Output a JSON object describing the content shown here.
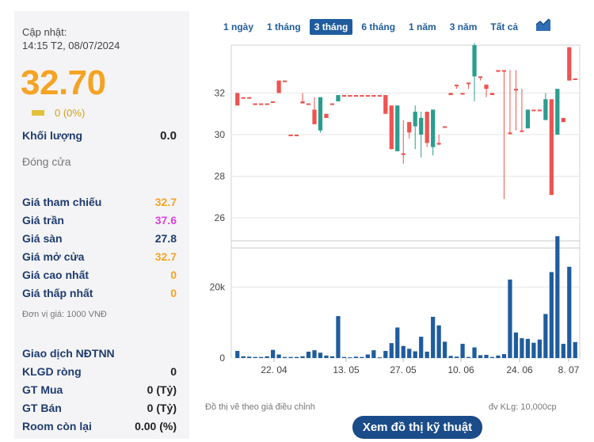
{
  "summary": {
    "updated_label": "Cập nhật:",
    "updated_time": "14:15 T2, 08/07/2024",
    "price": "32.70",
    "change": "0 (0%)",
    "volume_label": "Khối lượng",
    "volume_value": "0.0",
    "close_label": "Đóng cửa"
  },
  "prices": [
    {
      "label": "Giá tham chiếu",
      "value": "32.7",
      "color": "#f5a324"
    },
    {
      "label": "Giá trần",
      "value": "37.6",
      "color": "#e040e0"
    },
    {
      "label": "Giá sàn",
      "value": "27.8",
      "color": "#1f3c6e"
    },
    {
      "label": "Giá mở cửa",
      "value": "32.7",
      "color": "#f5a324"
    },
    {
      "label": "Giá cao nhất",
      "value": "0",
      "color": "#f5a324"
    },
    {
      "label": "Giá thấp nhất",
      "value": "0",
      "color": "#f5a324"
    }
  ],
  "unit_note": "Đơn vị giá: 1000 VNĐ",
  "foreign": {
    "title": "Giao dịch NĐTNN",
    "rows": [
      {
        "label": "KLGD ròng",
        "value": "0"
      },
      {
        "label": "GT Mua",
        "value": "0 (Tỷ)"
      },
      {
        "label": "GT Bán",
        "value": "0 (Tỷ)"
      },
      {
        "label": "Room còn lại",
        "value": "0.00 (%)"
      }
    ]
  },
  "tabs": [
    "1 ngày",
    "1 tháng",
    "3 tháng",
    "6 tháng",
    "1 năm",
    "3 năm",
    "Tất cả"
  ],
  "active_tab": 2,
  "chart_data": {
    "type": "candlestick",
    "price_axis": {
      "ticks": [
        "26",
        "28",
        "30",
        "32"
      ],
      "ylim": [
        25.2,
        34.3
      ]
    },
    "volume_axis": {
      "ticks": [
        "0",
        "20k"
      ],
      "ylim": [
        0,
        31000
      ]
    },
    "x_ticks": [
      "22. 04",
      "13. 05",
      "27. 05",
      "10. 06",
      "24. 06",
      "8. 07"
    ],
    "up_color": "#2a9d8f",
    "down_color": "#ef5350",
    "candles": [
      [
        32.0,
        32.0,
        31.4,
        31.4,
        2000
      ],
      [
        31.8,
        31.8,
        31.8,
        31.8,
        500
      ],
      [
        31.8,
        31.8,
        31.8,
        31.8,
        400
      ],
      [
        31.5,
        31.5,
        31.5,
        31.5,
        300
      ],
      [
        31.5,
        31.5,
        31.5,
        31.5,
        300
      ],
      [
        31.5,
        31.5,
        31.5,
        31.5,
        500
      ],
      [
        31.6,
        31.6,
        31.6,
        31.6,
        2300
      ],
      [
        32.6,
        32.6,
        32.0,
        32.0,
        1000
      ],
      [
        32.6,
        32.6,
        32.6,
        32.6,
        300
      ],
      [
        30.0,
        30.0,
        30.0,
        30.0,
        300
      ],
      [
        30.0,
        30.0,
        30.0,
        30.0,
        300
      ],
      [
        31.6,
        32.0,
        31.5,
        31.5,
        500
      ],
      [
        31.5,
        31.5,
        31.5,
        31.5,
        1800
      ],
      [
        31.2,
        31.8,
        30.5,
        30.5,
        2200
      ],
      [
        30.2,
        31.8,
        30.1,
        31.8,
        1500
      ],
      [
        31.0,
        31.0,
        30.8,
        30.8,
        700
      ],
      [
        31.5,
        31.5,
        31.5,
        31.5,
        500
      ],
      [
        31.6,
        31.9,
        31.6,
        31.9,
        11800
      ],
      [
        31.9,
        31.9,
        31.9,
        31.9,
        300
      ],
      [
        31.9,
        31.9,
        31.9,
        31.9,
        200
      ],
      [
        31.9,
        31.9,
        31.9,
        31.9,
        400
      ],
      [
        31.9,
        31.9,
        31.9,
        31.9,
        300
      ],
      [
        31.9,
        31.9,
        31.9,
        31.9,
        1000
      ],
      [
        31.9,
        31.9,
        31.9,
        31.9,
        2200
      ],
      [
        31.9,
        31.9,
        31.9,
        31.9,
        200
      ],
      [
        31.9,
        31.9,
        31.0,
        31.0,
        2000
      ],
      [
        31.4,
        31.4,
        29.3,
        29.3,
        4200
      ],
      [
        29.2,
        31.4,
        29.2,
        31.4,
        8600
      ],
      [
        29.1,
        30.7,
        28.6,
        29.1,
        3400
      ],
      [
        30.6,
        30.6,
        29.8,
        30.1,
        2600
      ],
      [
        30.4,
        31.4,
        29.3,
        31.1,
        1900
      ],
      [
        30.0,
        31.1,
        28.9,
        30.8,
        6000
      ],
      [
        31.1,
        31.1,
        29.4,
        29.6,
        1800
      ],
      [
        29.4,
        31.2,
        29.0,
        31.2,
        11600
      ],
      [
        29.6,
        30.0,
        29.5,
        29.6,
        9200
      ],
      [
        30.4,
        30.4,
        30.4,
        30.4,
        4600
      ],
      [
        32.0,
        32.0,
        31.9,
        31.9,
        600
      ],
      [
        32.4,
        32.4,
        32.2,
        32.4,
        400
      ],
      [
        32.0,
        32.0,
        32.0,
        32.0,
        4000
      ],
      [
        32.5,
        32.5,
        32.2,
        32.5,
        300
      ],
      [
        32.8,
        34.4,
        31.6,
        34.3,
        3000
      ],
      [
        32.8,
        32.8,
        32.6,
        32.8,
        800
      ],
      [
        32.4,
        32.4,
        31.8,
        32.2,
        900
      ],
      [
        32.0,
        32.0,
        31.9,
        31.9,
        300
      ],
      [
        33.1,
        33.1,
        33.0,
        33.1,
        700
      ],
      [
        33.1,
        33.1,
        26.9,
        33.1,
        1100
      ],
      [
        30.1,
        33.1,
        30.0,
        30.1,
        22100
      ],
      [
        32.2,
        33.1,
        30.2,
        32.2,
        7200
      ],
      [
        30.2,
        32.2,
        30.2,
        30.2,
        5600
      ],
      [
        30.3,
        31.2,
        30.3,
        31.2,
        5400
      ],
      [
        31.2,
        31.2,
        31.2,
        31.2,
        4300
      ],
      [
        31.2,
        31.2,
        31.2,
        31.2,
        5200
      ],
      [
        30.7,
        32.0,
        30.7,
        31.7,
        12400
      ],
      [
        31.7,
        31.7,
        27.1,
        27.1,
        24200
      ],
      [
        30.0,
        32.2,
        30.0,
        32.2,
        34300
      ],
      [
        30.8,
        30.8,
        30.6,
        30.6,
        4000
      ],
      [
        34.2,
        34.2,
        32.6,
        32.6,
        25700
      ],
      [
        32.7,
        32.7,
        32.7,
        32.7,
        4500
      ]
    ]
  },
  "footer": {
    "adjusted_note": "Đồ thị vẽ theo giá điều chỉnh",
    "volume_unit": "đv KLg: 10,000cp",
    "ta_button": "Xem đồ thị kỹ thuật"
  }
}
